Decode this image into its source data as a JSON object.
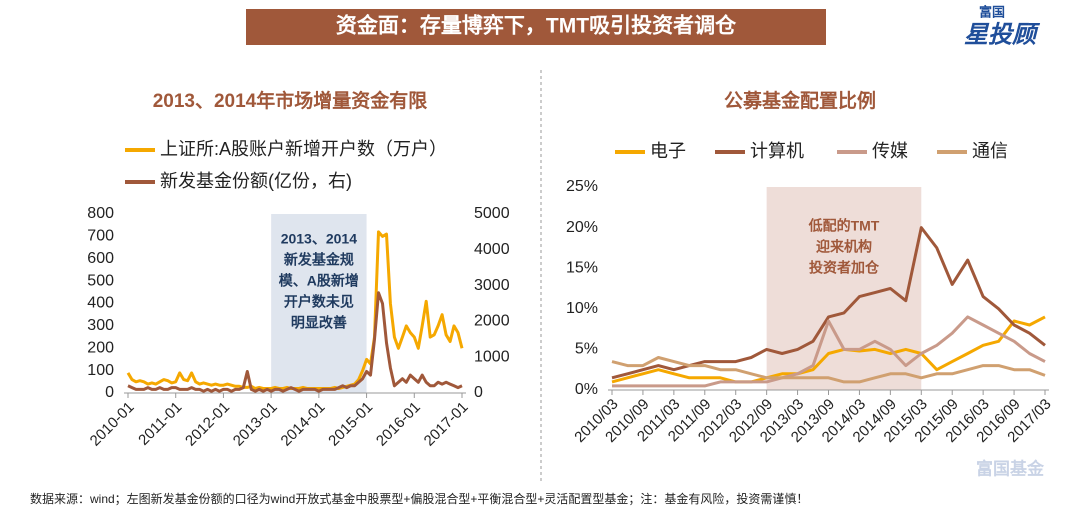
{
  "header": {
    "title": "资金面：存量博弈下，TMT吸引投资者调仓",
    "logo_top": "富国",
    "logo_main": "星投顾"
  },
  "footer": "数据来源：wind；左图新发基金份额的口径为wind开放式基金中股票型+偏股混合型+平衡混合型+灵活配置型基金；注：基金有风险，投资需谨慎！",
  "watermark": "富国基金",
  "chart_data": [
    {
      "type": "line",
      "title": "2013、2014年市场增量资金有限",
      "annotation": [
        "2013、2014",
        "新发基金规",
        "模、A股新增",
        "开户数未见",
        "明显改善"
      ],
      "categories": [
        "2010-01",
        null,
        null,
        null,
        null,
        null,
        null,
        null,
        null,
        null,
        null,
        null,
        "2011-01",
        null,
        null,
        null,
        null,
        null,
        null,
        null,
        null,
        null,
        null,
        null,
        "2012-01",
        null,
        null,
        null,
        null,
        null,
        null,
        null,
        null,
        null,
        null,
        null,
        "2013-01",
        null,
        null,
        null,
        null,
        null,
        null,
        null,
        null,
        null,
        null,
        null,
        "2014-01",
        null,
        null,
        null,
        null,
        null,
        null,
        null,
        null,
        null,
        null,
        null,
        "2015-01",
        null,
        null,
        null,
        null,
        null,
        null,
        null,
        null,
        null,
        null,
        null,
        "2016-01",
        null,
        null,
        null,
        null,
        null,
        null,
        null,
        null,
        null,
        null,
        null,
        "2017-01"
      ],
      "series": [
        {
          "name": "上证所:A股账户新增开户数（万户）",
          "color": "#f5a800",
          "values": [
            90,
            60,
            50,
            55,
            50,
            40,
            45,
            40,
            50,
            60,
            55,
            45,
            50,
            90,
            60,
            55,
            90,
            50,
            40,
            45,
            40,
            35,
            40,
            35,
            35,
            40,
            35,
            30,
            30,
            25,
            25,
            30,
            20,
            25,
            20,
            20,
            20,
            25,
            20,
            20,
            25,
            20,
            20,
            20,
            25,
            20,
            20,
            20,
            20,
            20,
            20,
            20,
            25,
            20,
            25,
            30,
            35,
            40,
            60,
            100,
            150,
            130,
            250,
            720,
            700,
            710,
            400,
            250,
            200,
            250,
            300,
            270,
            250,
            200,
            300,
            410,
            250,
            260,
            300,
            350,
            260,
            230,
            300,
            270,
            200
          ]
        },
        {
          "name": "新发基金份额(亿份，右)",
          "color": "#a0583a",
          "axis": "y2",
          "values": [
            200,
            150,
            100,
            100,
            100,
            150,
            100,
            100,
            150,
            100,
            100,
            150,
            150,
            100,
            100,
            100,
            150,
            100,
            100,
            50,
            100,
            50,
            100,
            50,
            100,
            100,
            50,
            100,
            100,
            150,
            600,
            100,
            50,
            100,
            50,
            100,
            50,
            100,
            100,
            50,
            100,
            150,
            100,
            50,
            100,
            100,
            100,
            100,
            50,
            100,
            100,
            100,
            100,
            150,
            200,
            150,
            200,
            200,
            300,
            400,
            600,
            500,
            1500,
            2800,
            2500,
            1400,
            700,
            200,
            300,
            400,
            300,
            500,
            400,
            300,
            500,
            300,
            200,
            200,
            300,
            250,
            300,
            250,
            200,
            150,
            200
          ]
        }
      ],
      "ylim": [
        0,
        800
      ],
      "yticks": [
        0,
        100,
        200,
        300,
        400,
        500,
        600,
        700,
        800
      ],
      "y2lim": [
        0,
        5000
      ],
      "y2ticks": [
        0,
        1000,
        2000,
        3000,
        4000,
        5000
      ],
      "legend": "top-left",
      "grid": false
    },
    {
      "type": "line",
      "title": "公募基金配置比例",
      "annotation": [
        "低配的TMT",
        "迎来机构",
        "投资者加仓"
      ],
      "categories": [
        "2010/03",
        null,
        "2010/09",
        null,
        "2011/03",
        null,
        "2011/09",
        null,
        "2012/03",
        null,
        "2012/09",
        null,
        "2013/03",
        null,
        "2013/09",
        null,
        "2014/03",
        null,
        "2014/09",
        null,
        "2015/03",
        null,
        "2015/09",
        null,
        "2016/03",
        null,
        "2016/09",
        null,
        "2017/03"
      ],
      "series": [
        {
          "name": "电子",
          "color": "#f5a800",
          "values": [
            1,
            1.5,
            2,
            2.5,
            2,
            1.5,
            1.5,
            1.5,
            1,
            1,
            1.5,
            2,
            2,
            2.5,
            4.5,
            5,
            4.8,
            5,
            4.5,
            5,
            4.5,
            2.5,
            3.5,
            4.5,
            5.5,
            6,
            8.5,
            8,
            9
          ]
        },
        {
          "name": "计算机",
          "color": "#a0583a",
          "values": [
            1.5,
            2,
            2.5,
            3,
            2.5,
            3,
            3.5,
            3.5,
            3.5,
            4,
            5,
            4.5,
            5,
            6,
            9,
            9.5,
            11.5,
            12,
            12.5,
            11,
            20,
            17.5,
            13,
            16,
            11.5,
            10,
            8,
            7,
            5.5
          ]
        },
        {
          "name": "传媒",
          "color": "#c99a8a",
          "values": [
            0.5,
            0.5,
            0.5,
            0.5,
            0.5,
            0.5,
            0.5,
            1,
            1,
            1,
            1,
            1.5,
            2,
            3,
            8.5,
            5,
            5,
            6,
            5,
            3,
            4.5,
            5.5,
            7,
            9,
            8,
            7,
            6,
            4.5,
            3.5
          ]
        },
        {
          "name": "通信",
          "color": "#d0a070",
          "values": [
            3.5,
            3,
            3,
            4,
            3.5,
            3,
            3,
            2.5,
            2.5,
            2,
            1.5,
            1.5,
            1.5,
            1.5,
            1.5,
            1,
            1,
            1.5,
            2,
            2,
            1.5,
            2,
            2,
            2.5,
            3,
            3,
            2.5,
            2.5,
            1.8
          ]
        }
      ],
      "ylim": [
        0,
        25
      ],
      "yticks": [
        {
          "value": 0,
          "label": "0%"
        },
        {
          "value": 5,
          "label": "5%"
        },
        {
          "value": 10,
          "label": "10%"
        },
        {
          "value": 15,
          "label": "15%"
        },
        {
          "value": 20,
          "label": "20%"
        },
        {
          "value": 25,
          "label": "25%"
        }
      ],
      "legend": "top",
      "grid": false
    }
  ]
}
